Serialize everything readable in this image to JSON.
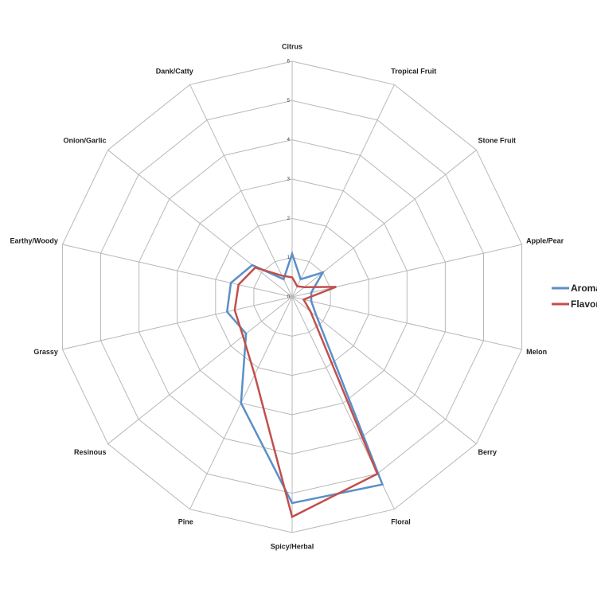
{
  "chart_data": {
    "type": "radar",
    "categories": [
      "Citrus",
      "Tropical Fruit",
      "Stone Fruit",
      "Apple/Pear",
      "Melon",
      "Berry",
      "Floral",
      "Spicy/Herbal",
      "Pine",
      "Resinous",
      "Grassy",
      "Earthy/Woody",
      "Onion/Garlic",
      "Dank/Catty"
    ],
    "series": [
      {
        "name": "Aroma",
        "color": "#5b8fc7",
        "values": [
          1.1,
          0.5,
          1.0,
          0.5,
          0.5,
          0.8,
          5.3,
          5.25,
          3.0,
          1.5,
          1.7,
          1.6,
          1.3,
          0.5
        ]
      },
      {
        "name": "Flavor",
        "color": "#c0504d",
        "values": [
          0.5,
          0.3,
          0.4,
          1.15,
          0.3,
          0.6,
          5.0,
          5.6,
          2.2,
          1.6,
          1.5,
          1.4,
          1.2,
          0.6
        ]
      }
    ],
    "ylim": [
      0,
      6
    ],
    "yticks": [
      0,
      1,
      2,
      3,
      4,
      5,
      6
    ],
    "grid": true,
    "legend": "right"
  }
}
